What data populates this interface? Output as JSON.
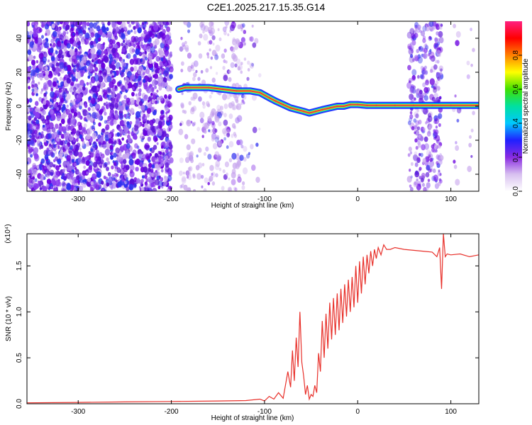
{
  "title": "C2E1.2025.217.15.35.G14",
  "colors": {
    "axes": "#000000",
    "snr_line": "#e8302a",
    "ridge_core": "#e04040",
    "ridge_outline": "#00e0c0",
    "noise_dark": "#6a00e0",
    "noise_light": "#c9a8ee",
    "background": "#ffffff"
  },
  "chart_data": [
    {
      "type": "heatmap",
      "title": "C2E1.2025.217.15.35.G14",
      "xlabel": "Height of straight line (km)",
      "ylabel": "Frequency (Hz)",
      "xlim": [
        -355,
        130
      ],
      "ylim": [
        -50,
        50
      ],
      "x_ticks": [
        -300,
        -200,
        -100,
        0,
        100
      ],
      "y_ticks": [
        -40,
        -20,
        0,
        20,
        40
      ],
      "colorbar": {
        "label": "Normalized spectral amplitude",
        "range": [
          0.0,
          1.0
        ],
        "ticks": [
          0.0,
          0.2,
          0.4,
          0.6,
          0.8
        ],
        "colormap": [
          "#ffffff",
          "#d8c0f0",
          "#8a2be2",
          "#2020ff",
          "#00c8ff",
          "#00e0a0",
          "#40e000",
          "#ffff00",
          "#ff8000",
          "#ff0000",
          "#ff2080"
        ]
      },
      "ridge": {
        "x": [
          -192,
          -185,
          -180,
          -160,
          -145,
          -130,
          -115,
          -105,
          -95,
          -88,
          -80,
          -72,
          -65,
          -58,
          -52,
          -45,
          -38,
          -30,
          -22,
          -15,
          -8,
          0,
          10,
          20,
          40,
          60,
          80,
          100,
          130
        ],
        "y": [
          10,
          11,
          11,
          11,
          10,
          9,
          9,
          8,
          5,
          3,
          1,
          -1,
          -2,
          -3,
          -4,
          -3,
          -2,
          -1,
          0,
          0,
          1,
          1,
          0.5,
          0.5,
          0.5,
          0.5,
          0.5,
          0.5,
          0.5
        ]
      },
      "noise_bands": [
        {
          "x_range": [
            -355,
            -200
          ],
          "intensity": "dense"
        },
        {
          "x_range": [
            -190,
            -120
          ],
          "intensity": "sparse"
        },
        {
          "x_range": [
            -118,
            -105
          ],
          "intensity": "very_sparse"
        },
        {
          "x_range": [
            55,
            90
          ],
          "intensity": "medium"
        },
        {
          "x_range": [
            102,
            110
          ],
          "intensity": "very_sparse"
        },
        {
          "x_range": [
            118,
            125
          ],
          "intensity": "very_sparse"
        }
      ]
    },
    {
      "type": "line",
      "xlabel": "Height of straight line (km)",
      "ylabel": "SNR (10 * v/v)",
      "y_scale_note": "(x10⁴)",
      "xlim": [
        -355,
        130
      ],
      "ylim": [
        0,
        1.85
      ],
      "x_ticks": [
        -300,
        -200,
        -100,
        0,
        100
      ],
      "y_ticks": [
        0.0,
        0.5,
        1.0,
        1.5
      ],
      "y_tick_labels": [
        "0.0",
        "0.5",
        "1.0",
        "1.5"
      ],
      "series": [
        {
          "x": [
            -355,
            -300,
            -250,
            -200,
            -150,
            -120,
            -105,
            -100,
            -95,
            -90,
            -85,
            -80,
            -75,
            -72,
            -70,
            -68,
            -66,
            -64,
            -62,
            -60,
            -58,
            -56,
            -54,
            -52,
            -50,
            -48,
            -46,
            -44,
            -42,
            -40,
            -38,
            -36,
            -34,
            -32,
            -30,
            -28,
            -26,
            -24,
            -22,
            -20,
            -18,
            -16,
            -14,
            -12,
            -10,
            -8,
            -6,
            -4,
            -2,
            0,
            2,
            4,
            6,
            8,
            10,
            12,
            14,
            16,
            18,
            20,
            22,
            25,
            28,
            31,
            35,
            40,
            50,
            60,
            70,
            80,
            85,
            88,
            90,
            92,
            94,
            96,
            100,
            110,
            120,
            130
          ],
          "y": [
            0.01,
            0.015,
            0.02,
            0.025,
            0.03,
            0.035,
            0.05,
            0.03,
            0.08,
            0.05,
            0.12,
            0.06,
            0.35,
            0.18,
            0.58,
            0.25,
            0.72,
            0.4,
            1.0,
            0.45,
            0.3,
            0.1,
            0.2,
            0.05,
            0.1,
            0.08,
            0.2,
            0.12,
            0.55,
            0.35,
            0.9,
            0.5,
            0.98,
            0.6,
            1.1,
            0.7,
            1.15,
            0.75,
            1.2,
            0.8,
            1.25,
            0.88,
            1.3,
            0.95,
            1.35,
            1.0,
            1.38,
            1.05,
            1.5,
            1.1,
            1.55,
            1.2,
            1.6,
            1.3,
            1.62,
            1.42,
            1.66,
            1.5,
            1.68,
            1.58,
            1.7,
            1.62,
            1.73,
            1.68,
            1.68,
            1.7,
            1.68,
            1.67,
            1.66,
            1.65,
            1.6,
            1.7,
            1.25,
            1.85,
            1.6,
            1.63,
            1.62,
            1.63,
            1.6,
            1.62
          ]
        }
      ]
    }
  ]
}
